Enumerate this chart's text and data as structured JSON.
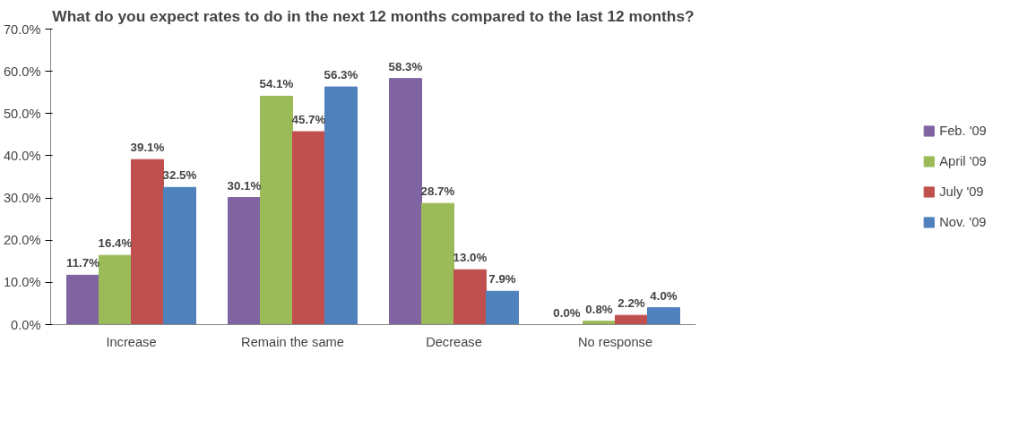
{
  "chart_data": {
    "type": "bar",
    "title": "What do you expect rates to do in the next 12 months compared to the last 12 months?",
    "categories": [
      "Increase",
      "Remain the same",
      "Decrease",
      "No response"
    ],
    "series": [
      {
        "name": "Feb. '09",
        "color": "#8064a2",
        "values": [
          11.7,
          30.1,
          58.3,
          0.0
        ],
        "value_labels": [
          "11.7%",
          "30.1%",
          "58.3%",
          "0.0%"
        ]
      },
      {
        "name": "April '09",
        "color": "#9bbb59",
        "values": [
          16.4,
          54.1,
          28.7,
          0.8
        ],
        "value_labels": [
          "16.4%",
          "54.1%",
          "28.7%",
          "0.8%"
        ]
      },
      {
        "name": "July '09",
        "color": "#c0504d",
        "values": [
          39.1,
          45.7,
          13.0,
          2.2
        ],
        "value_labels": [
          "39.1%",
          "45.7%",
          "13.0%",
          "2.2%"
        ]
      },
      {
        "name": "Nov. '09",
        "color": "#4f81bd",
        "values": [
          32.5,
          56.3,
          7.9,
          4.0
        ],
        "value_labels": [
          "32.5%",
          "56.3%",
          "7.9%",
          "4.0%"
        ]
      }
    ],
    "ylim": [
      0,
      70
    ],
    "yticks": [
      {
        "value": 0,
        "label": "0.0%"
      },
      {
        "value": 10,
        "label": "10.0%"
      },
      {
        "value": 20,
        "label": "20.0%"
      },
      {
        "value": 30,
        "label": "30.0%"
      },
      {
        "value": 40,
        "label": "40.0%"
      },
      {
        "value": 50,
        "label": "50.0%"
      },
      {
        "value": 60,
        "label": "60.0%"
      },
      {
        "value": 70,
        "label": "70.0%"
      }
    ],
    "grid": false,
    "legend": "right"
  }
}
